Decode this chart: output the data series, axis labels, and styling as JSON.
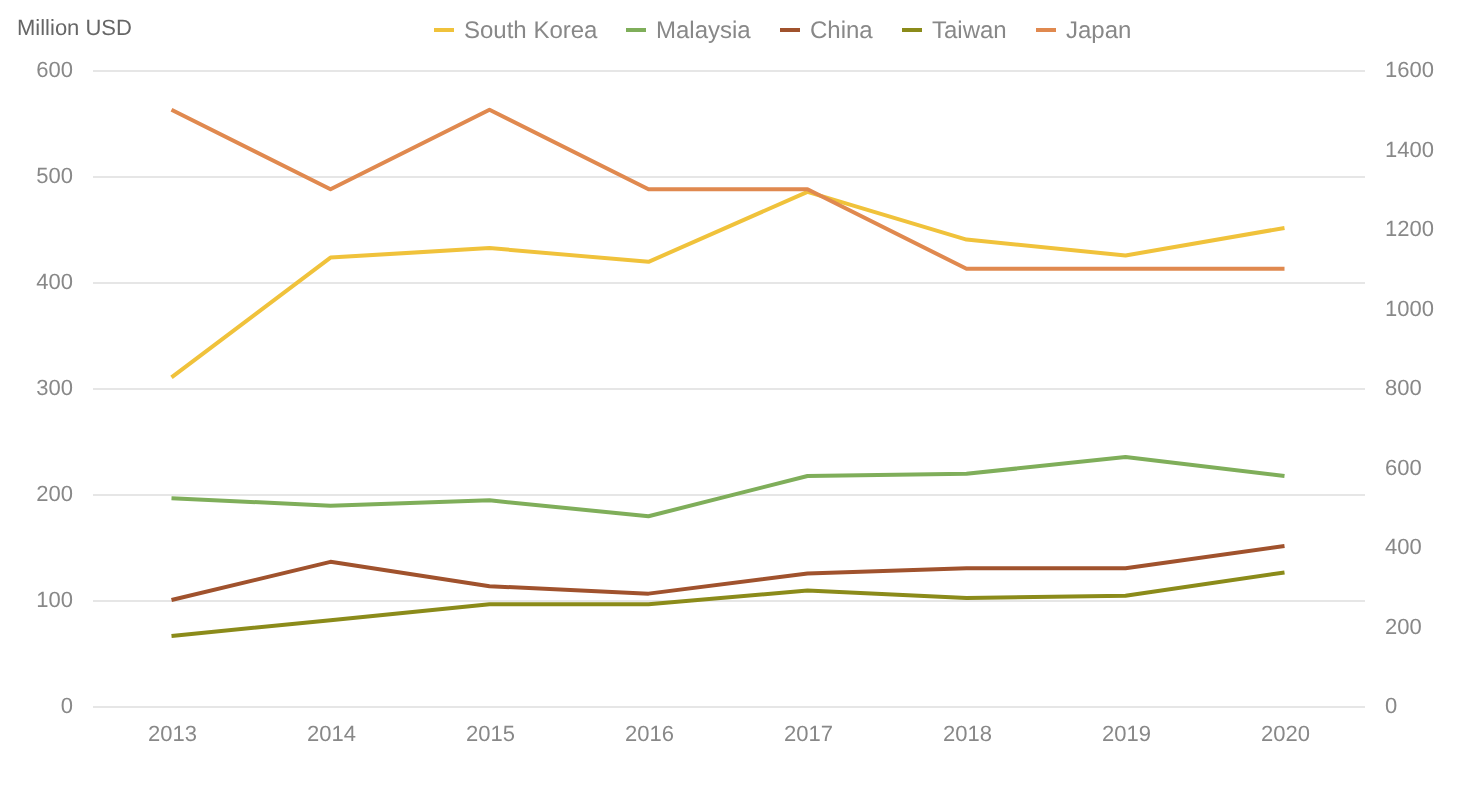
{
  "chart_data": {
    "type": "line",
    "ylabel": "Million USD",
    "categories": [
      "2013",
      "2014",
      "2015",
      "2016",
      "2017",
      "2018",
      "2019",
      "2020"
    ],
    "series": [
      {
        "name": "South Korea",
        "color": "#f0c23b",
        "values": [
          310,
          423,
          432,
          419,
          485,
          440,
          425,
          451
        ]
      },
      {
        "name": "Malaysia",
        "color": "#7fae5a",
        "values": [
          196,
          189,
          194,
          179,
          217,
          219,
          235,
          217
        ]
      },
      {
        "name": "China",
        "color": "#a0522d",
        "values": [
          100,
          136,
          113,
          106,
          125,
          130,
          130,
          151
        ]
      },
      {
        "name": "Taiwan",
        "color": "#8b8b1a",
        "values": [
          66,
          81,
          96,
          96,
          109,
          102,
          104,
          126
        ]
      },
      {
        "name": "Japan",
        "color": "#e0894f",
        "axis": "y2",
        "values": [
          1500,
          1300,
          1500,
          1300,
          1300,
          1100,
          1100,
          1100
        ]
      }
    ],
    "ylim": [
      0,
      600
    ],
    "yticks": [
      0,
      100,
      200,
      300,
      400,
      500,
      600
    ],
    "y2lim": [
      0,
      1600
    ],
    "y2ticks": [
      0,
      200,
      400,
      600,
      800,
      1000,
      1200,
      1400,
      1600
    ],
    "grid": "y",
    "legend": "top",
    "marker": "none",
    "line_style": "solid"
  }
}
